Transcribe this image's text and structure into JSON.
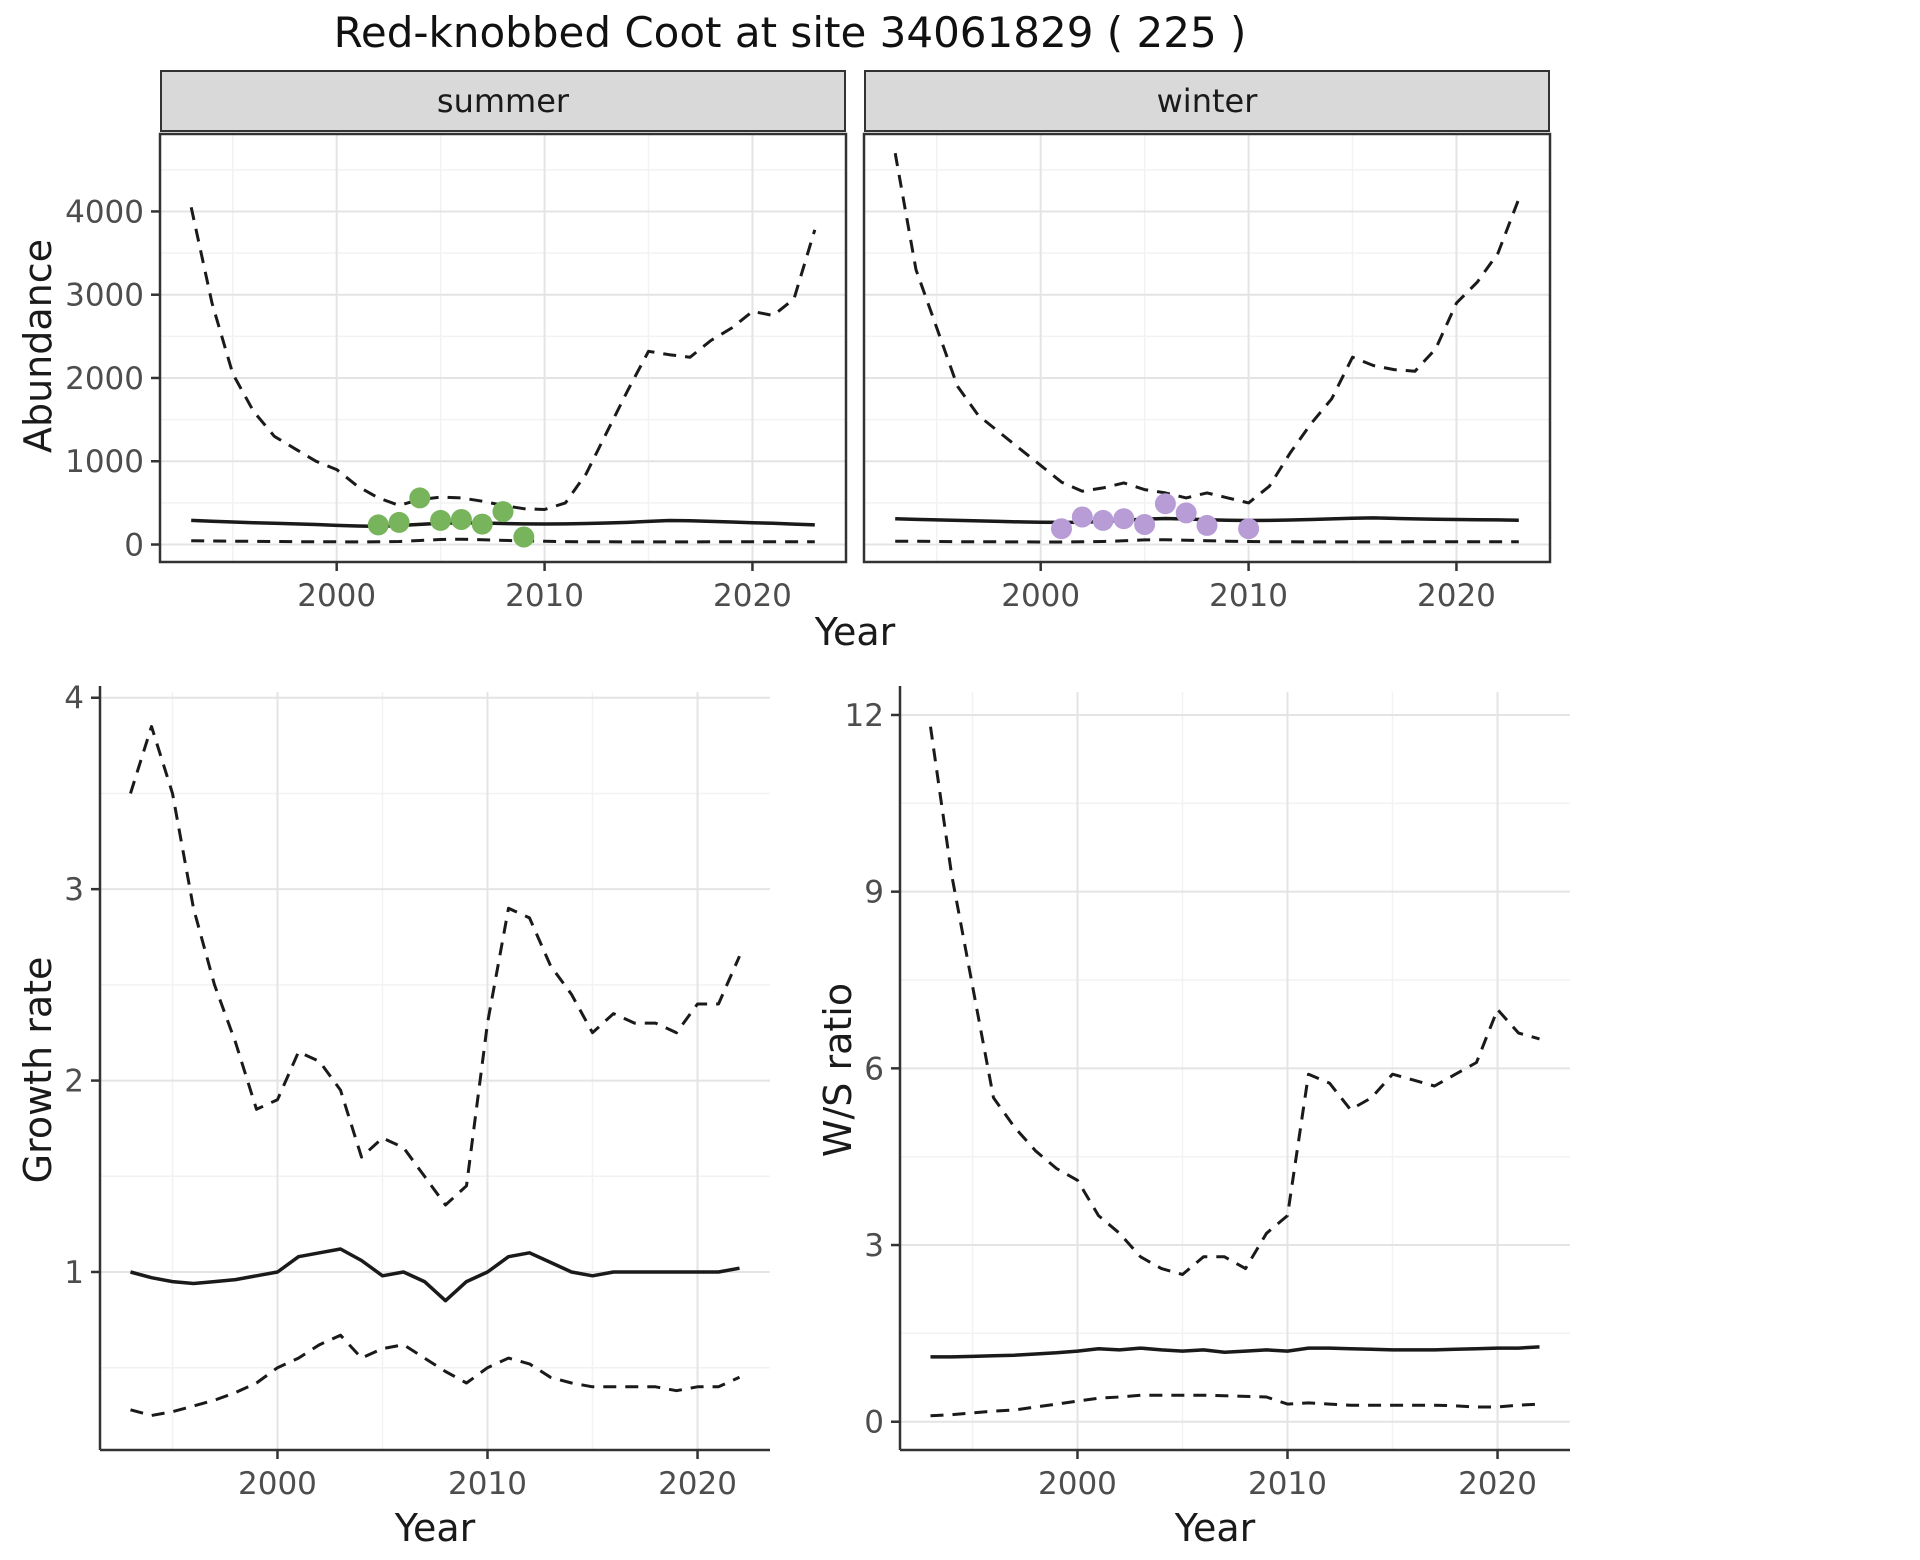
{
  "title": "Red-knobbed Coot at site 34061829 ( 225 )",
  "labels": {
    "abundance": "Abundance",
    "year": "Year",
    "growth_rate": "Growth rate",
    "ws_ratio": "W/S ratio"
  },
  "facets": [
    {
      "label": "summer"
    },
    {
      "label": "winter"
    }
  ],
  "colors": {
    "line": "#1a1a1a",
    "grid_major": "#e4e4e4",
    "grid_minor": "#f2f2f2",
    "panel_border": "#333333",
    "strip_bg": "#d9d9d9",
    "tick_text": "#4d4d4d",
    "summer_points": "#77b45c",
    "winter_points": "#b79cd6"
  },
  "chart_data": [
    {
      "type": "line",
      "id": "abundance-summer",
      "facet": "summer",
      "xlabel": "Year",
      "ylabel": "Abundance",
      "xlim": [
        1991.5,
        2024.5
      ],
      "ylim": [
        -210,
        4930
      ],
      "xticks": [
        2000,
        2010,
        2020
      ],
      "xticks_minor": [
        1995,
        2005,
        2015
      ],
      "yticks": [
        0,
        1000,
        2000,
        3000,
        4000
      ],
      "yticks_minor": [
        500,
        1500,
        2500,
        3500,
        4500
      ],
      "x": [
        1993,
        1994,
        1995,
        1996,
        1997,
        1998,
        1999,
        2000,
        2001,
        2002,
        2003,
        2004,
        2005,
        2006,
        2007,
        2008,
        2009,
        2010,
        2011,
        2012,
        2013,
        2014,
        2015,
        2016,
        2017,
        2018,
        2019,
        2020,
        2021,
        2022,
        2023
      ],
      "series": [
        {
          "name": "upper_ci",
          "style": "dashed",
          "y": [
            4050,
            2900,
            2050,
            1600,
            1300,
            1150,
            1000,
            900,
            700,
            560,
            470,
            540,
            570,
            560,
            520,
            470,
            430,
            420,
            500,
            850,
            1350,
            1850,
            2320,
            2280,
            2250,
            2450,
            2600,
            2800,
            2750,
            2950,
            3780
          ]
        },
        {
          "name": "median",
          "style": "solid",
          "y": [
            290,
            280,
            270,
            262,
            255,
            248,
            240,
            230,
            222,
            218,
            228,
            242,
            255,
            262,
            258,
            252,
            248,
            246,
            248,
            252,
            258,
            266,
            278,
            288,
            285,
            278,
            270,
            262,
            255,
            245,
            235
          ]
        },
        {
          "name": "lower_ci",
          "style": "dashed",
          "y": [
            45,
            42,
            40,
            38,
            36,
            34,
            33,
            32,
            31,
            32,
            36,
            48,
            60,
            64,
            58,
            50,
            44,
            38,
            35,
            33,
            32,
            31,
            31,
            31,
            31,
            32,
            32,
            33,
            33,
            34,
            34
          ]
        }
      ],
      "points": {
        "name": "observed-counts-summer",
        "color": "#77b45c",
        "x": [
          2002,
          2003,
          2004,
          2005,
          2006,
          2007,
          2008,
          2009
        ],
        "y": [
          235,
          265,
          560,
          290,
          300,
          245,
          395,
          90
        ]
      }
    },
    {
      "type": "line",
      "id": "abundance-winter",
      "facet": "winter",
      "xlabel": "Year",
      "ylabel": "Abundance",
      "xlim": [
        1991.5,
        2024.5
      ],
      "ylim": [
        -210,
        4930
      ],
      "xticks": [
        2000,
        2010,
        2020
      ],
      "xticks_minor": [
        1995,
        2005,
        2015
      ],
      "yticks": [
        0,
        1000,
        2000,
        3000,
        4000
      ],
      "yticks_minor": [
        500,
        1500,
        2500,
        3500,
        4500
      ],
      "x": [
        1993,
        1994,
        1995,
        1996,
        1997,
        1998,
        1999,
        2000,
        2001,
        2002,
        2003,
        2004,
        2005,
        2006,
        2007,
        2008,
        2009,
        2010,
        2011,
        2012,
        2013,
        2014,
        2015,
        2016,
        2017,
        2018,
        2019,
        2020,
        2021,
        2022,
        2023
      ],
      "series": [
        {
          "name": "upper_ci",
          "style": "dashed",
          "y": [
            4700,
            3300,
            2600,
            1900,
            1550,
            1350,
            1150,
            950,
            750,
            640,
            680,
            740,
            660,
            620,
            560,
            620,
            560,
            500,
            700,
            1100,
            1450,
            1750,
            2250,
            2150,
            2100,
            2080,
            2350,
            2900,
            3150,
            3500,
            4150
          ]
        },
        {
          "name": "median",
          "style": "solid",
          "y": [
            310,
            302,
            296,
            290,
            284,
            278,
            272,
            268,
            265,
            268,
            278,
            292,
            305,
            312,
            306,
            298,
            292,
            288,
            290,
            294,
            300,
            308,
            316,
            320,
            314,
            308,
            304,
            300,
            298,
            296,
            292
          ]
        },
        {
          "name": "lower_ci",
          "style": "dashed",
          "y": [
            40,
            38,
            36,
            34,
            33,
            32,
            31,
            30,
            30,
            32,
            36,
            45,
            55,
            58,
            52,
            46,
            40,
            36,
            34,
            32,
            31,
            31,
            31,
            31,
            31,
            32,
            32,
            33,
            33,
            34,
            34
          ]
        }
      ],
      "points": {
        "name": "observed-counts-winter",
        "color": "#b79cd6",
        "x": [
          2001,
          2002,
          2003,
          2004,
          2005,
          2006,
          2007,
          2008,
          2010
        ],
        "y": [
          190,
          330,
          290,
          310,
          240,
          490,
          380,
          230,
          190
        ]
      }
    },
    {
      "type": "line",
      "id": "growth-rate",
      "xlabel": "Year",
      "ylabel": "Growth rate",
      "xlim": [
        1991.55,
        2023.45
      ],
      "ylim": [
        0.07,
        4.03
      ],
      "xticks": [
        2000,
        2010,
        2020
      ],
      "xticks_minor": [
        1995,
        2005,
        2015
      ],
      "yticks": [
        1,
        2,
        3,
        4
      ],
      "yticks_minor": [
        0.5,
        1.5,
        2.5,
        3.5
      ],
      "x": [
        1993,
        1994,
        1995,
        1996,
        1997,
        1998,
        1999,
        2000,
        2001,
        2002,
        2003,
        2004,
        2005,
        2006,
        2007,
        2008,
        2009,
        2010,
        2011,
        2012,
        2013,
        2014,
        2015,
        2016,
        2017,
        2018,
        2019,
        2020,
        2021,
        2022
      ],
      "series": [
        {
          "name": "upper_ci",
          "style": "dashed",
          "y": [
            3.5,
            3.85,
            3.5,
            2.9,
            2.5,
            2.2,
            1.85,
            1.9,
            2.15,
            2.1,
            1.95,
            1.6,
            1.7,
            1.65,
            1.5,
            1.35,
            1.45,
            2.3,
            2.9,
            2.85,
            2.6,
            2.45,
            2.25,
            2.35,
            2.3,
            2.3,
            2.25,
            2.4,
            2.4,
            2.65
          ]
        },
        {
          "name": "median",
          "style": "solid",
          "y": [
            1.0,
            0.97,
            0.95,
            0.94,
            0.95,
            0.96,
            0.98,
            1.0,
            1.08,
            1.1,
            1.12,
            1.06,
            0.98,
            1.0,
            0.95,
            0.85,
            0.95,
            1.0,
            1.08,
            1.1,
            1.05,
            1.0,
            0.98,
            1.0,
            1.0,
            1.0,
            1.0,
            1.0,
            1.0,
            1.02
          ]
        },
        {
          "name": "lower_ci",
          "style": "dashed",
          "y": [
            0.28,
            0.25,
            0.27,
            0.3,
            0.33,
            0.37,
            0.42,
            0.5,
            0.55,
            0.62,
            0.67,
            0.55,
            0.6,
            0.62,
            0.55,
            0.48,
            0.42,
            0.5,
            0.55,
            0.52,
            0.45,
            0.42,
            0.4,
            0.4,
            0.4,
            0.4,
            0.38,
            0.4,
            0.4,
            0.45
          ]
        }
      ],
      "points": null
    },
    {
      "type": "line",
      "id": "ws-ratio",
      "xlabel": "Year",
      "ylabel": "W/S ratio",
      "xlim": [
        1991.55,
        2023.45
      ],
      "ylim": [
        -0.48,
        12.39
      ],
      "xticks": [
        2000,
        2010,
        2020
      ],
      "xticks_minor": [
        1995,
        2005,
        2015
      ],
      "yticks": [
        0,
        3,
        6,
        9,
        12
      ],
      "yticks_minor": [
        1.5,
        4.5,
        7.5,
        10.5
      ],
      "x": [
        1993,
        1994,
        1995,
        1996,
        1997,
        1998,
        1999,
        2000,
        2001,
        2002,
        2003,
        2004,
        2005,
        2006,
        2007,
        2008,
        2009,
        2010,
        2011,
        2012,
        2013,
        2014,
        2015,
        2016,
        2017,
        2018,
        2019,
        2020,
        2021,
        2022
      ],
      "series": [
        {
          "name": "upper_ci",
          "style": "dashed",
          "y": [
            11.8,
            9.3,
            7.4,
            5.5,
            5.0,
            4.6,
            4.3,
            4.1,
            3.5,
            3.2,
            2.8,
            2.6,
            2.5,
            2.8,
            2.8,
            2.6,
            3.2,
            3.5,
            5.9,
            5.75,
            5.3,
            5.5,
            5.9,
            5.8,
            5.7,
            5.9,
            6.1,
            7.0,
            6.6,
            6.5
          ]
        },
        {
          "name": "median",
          "style": "solid",
          "y": [
            1.1,
            1.1,
            1.11,
            1.12,
            1.13,
            1.15,
            1.17,
            1.2,
            1.24,
            1.22,
            1.25,
            1.22,
            1.2,
            1.22,
            1.18,
            1.2,
            1.22,
            1.2,
            1.25,
            1.25,
            1.24,
            1.23,
            1.22,
            1.22,
            1.22,
            1.23,
            1.24,
            1.25,
            1.25,
            1.27
          ]
        },
        {
          "name": "lower_ci",
          "style": "dashed",
          "y": [
            0.1,
            0.12,
            0.15,
            0.18,
            0.2,
            0.25,
            0.3,
            0.35,
            0.4,
            0.42,
            0.45,
            0.45,
            0.45,
            0.45,
            0.44,
            0.43,
            0.42,
            0.3,
            0.32,
            0.3,
            0.28,
            0.28,
            0.28,
            0.28,
            0.28,
            0.27,
            0.25,
            0.25,
            0.28,
            0.3
          ]
        }
      ],
      "points": null
    }
  ]
}
